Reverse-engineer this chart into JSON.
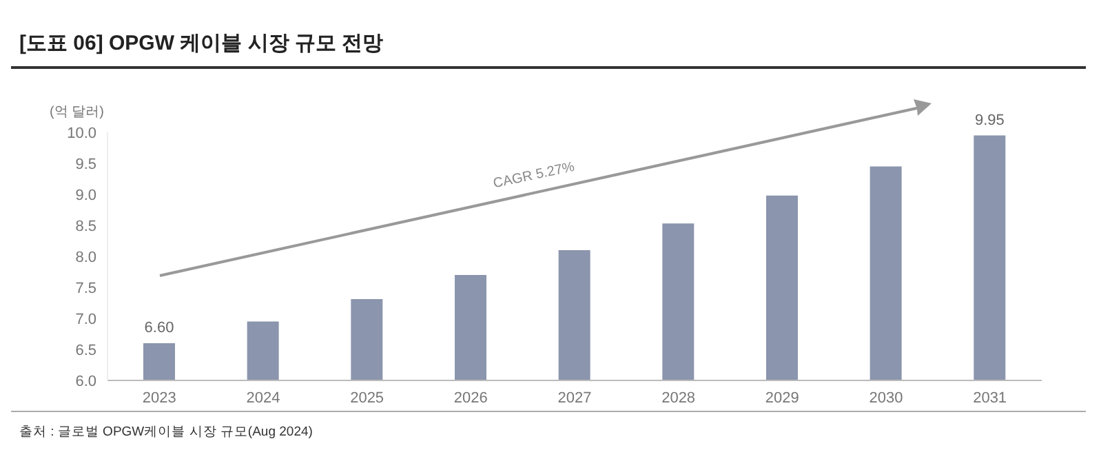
{
  "chart_data": {
    "type": "bar",
    "title": "[도표 06] OPGW 케이블 시장 규모 전망",
    "ylabel": "(억 달러)",
    "categories": [
      "2023",
      "2024",
      "2025",
      "2026",
      "2027",
      "2028",
      "2029",
      "2030",
      "2031"
    ],
    "values": [
      6.6,
      6.95,
      7.31,
      7.7,
      8.1,
      8.53,
      8.98,
      9.45,
      9.95
    ],
    "value_labels": [
      "6.60",
      null,
      null,
      null,
      null,
      null,
      null,
      null,
      "9.95"
    ],
    "color": "#8b95ad",
    "ylim": [
      6.0,
      10.0
    ],
    "yticks": [
      {
        "value": 6,
        "label": "6.0"
      },
      {
        "value": 6.5,
        "label": "6.5"
      },
      {
        "value": 7,
        "label": "7.0"
      },
      {
        "value": 7.5,
        "label": "7.5"
      },
      {
        "value": 8,
        "label": "8.0"
      },
      {
        "value": 8.5,
        "label": "8.5"
      },
      {
        "value": 9,
        "label": "9.0"
      },
      {
        "value": 9.5,
        "label": "9.5"
      },
      {
        "value": 10,
        "label": "10.0"
      }
    ],
    "grid": false,
    "legend": false,
    "annotations": [
      "CAGR 5.27%",
      "출처 : 글로벌 OPGW케이블 시장 규모(Aug 2024)"
    ]
  }
}
